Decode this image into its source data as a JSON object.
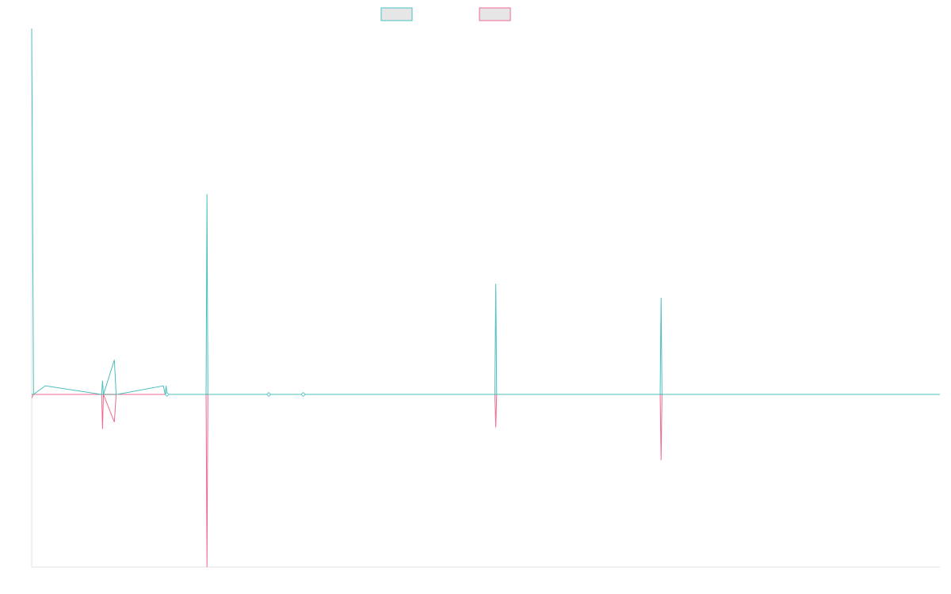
{
  "chart_data": {
    "type": "line",
    "title": "",
    "xlabel": "",
    "ylabel": "",
    "grid": false,
    "legend_position": "top-center",
    "xlim": [
      0,
      1000
    ],
    "ylim": [
      -100,
      212
    ],
    "x": [
      0,
      2,
      15,
      77,
      78,
      79,
      91,
      93,
      94,
      145,
      147,
      148,
      149,
      192,
      193,
      194,
      195,
      201,
      261,
      299,
      510,
      511,
      512,
      692,
      693,
      694,
      1000
    ],
    "series": [
      {
        "name": "",
        "color": "#4bbfbf",
        "values": [
          212,
          0,
          5,
          0,
          8,
          0,
          20,
          0,
          0,
          5,
          0,
          5,
          0,
          0,
          116,
          0,
          0,
          0,
          0,
          0,
          0,
          64,
          0,
          0,
          56,
          0,
          0
        ]
      },
      {
        "name": "",
        "color": "#f0698e",
        "values": [
          -2,
          0,
          0,
          0,
          -20,
          0,
          -16,
          0,
          0,
          0,
          0,
          0,
          0,
          0,
          -100,
          0,
          0,
          0,
          0,
          0,
          0,
          -19,
          0,
          0,
          -38,
          0,
          0
        ]
      }
    ]
  }
}
